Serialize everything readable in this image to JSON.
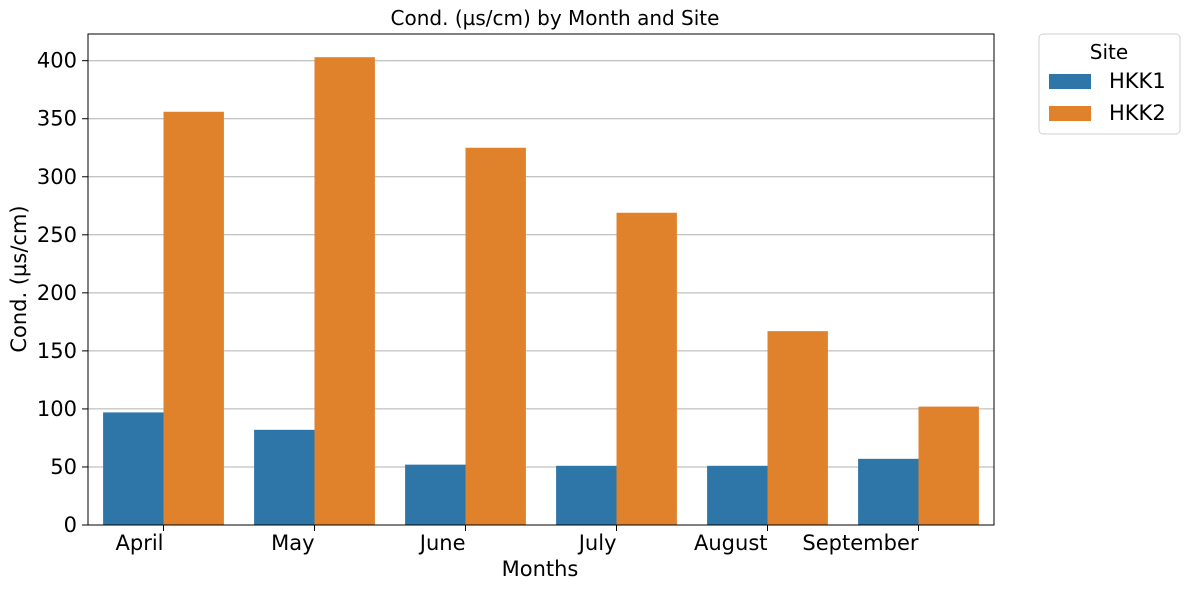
{
  "chart_data": {
    "type": "bar",
    "title": "Cond. (µs/cm) by Month and Site",
    "xlabel": "Months",
    "ylabel": "Cond. (µs/cm)",
    "categories": [
      "April",
      "May",
      "June",
      "July",
      "August",
      "September"
    ],
    "series": [
      {
        "name": "HKK1",
        "color": "#2e75a8",
        "values": [
          97,
          82,
          52,
          51,
          51,
          57
        ]
      },
      {
        "name": "HKK2",
        "color": "#e0812c",
        "values": [
          356,
          403,
          325,
          269,
          167,
          102
        ]
      }
    ],
    "ylim": [
      0,
      423
    ],
    "yticks": [
      0,
      50,
      100,
      150,
      200,
      250,
      300,
      350,
      400
    ],
    "grid": "horizontal",
    "legend": {
      "title": "Site",
      "placement": "outside-top-right"
    }
  }
}
